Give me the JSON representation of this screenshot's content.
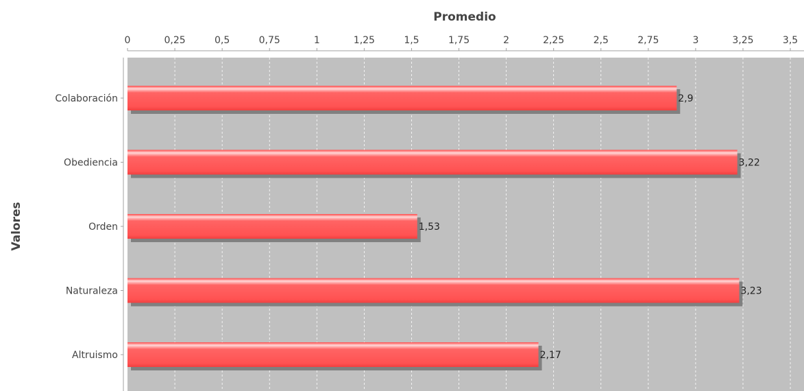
{
  "chart_data": {
    "type": "bar",
    "orientation": "horizontal",
    "title": "",
    "xlabel": "Promedio",
    "ylabel": "Valores",
    "categories": [
      "Colaboración",
      "Obediencia",
      "Orden",
      "Naturaleza",
      "Altruismo"
    ],
    "values": [
      2.9,
      3.22,
      1.53,
      3.23,
      2.17
    ],
    "value_labels": [
      "2,9",
      "3,22",
      "1,53",
      "3,23",
      "2,17"
    ],
    "xlim": [
      0,
      3.5
    ],
    "ticks": [
      0,
      0.25,
      0.5,
      0.75,
      1,
      1.25,
      1.5,
      1.75,
      2,
      2.25,
      2.5,
      2.75,
      3,
      3.25,
      3.5
    ],
    "tick_labels": [
      "0",
      "0,25",
      "0,5",
      "0,75",
      "1",
      "1,25",
      "1,5",
      "1,75",
      "2",
      "2,25",
      "2,5",
      "2,75",
      "3",
      "3,25",
      "3,5"
    ],
    "x_axis_position": "top",
    "grid": true,
    "legend": "none",
    "colors": {
      "bar": "#ff5555",
      "bar_highlight": "#ffd8d8",
      "bar_shadow": "#808080",
      "plot_background": "#c0c0c0",
      "gridline": "#ffffff"
    }
  }
}
